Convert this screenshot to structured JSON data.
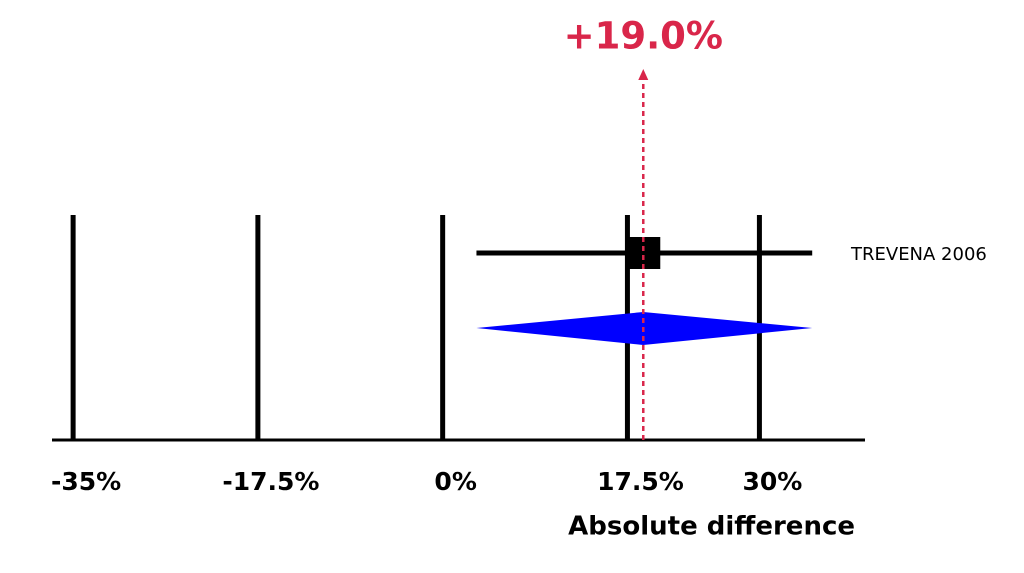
{
  "chart_data": {
    "type": "forest",
    "x_label": "Absolute difference",
    "xlim": [
      -37,
      40
    ],
    "xticks": [
      {
        "value": -35,
        "label": "-35%"
      },
      {
        "value": -17.5,
        "label": "-17.5%"
      },
      {
        "value": 0,
        "label": "0%"
      },
      {
        "value": 17.5,
        "label": "17.5%"
      },
      {
        "value": 30,
        "label": "30%"
      }
    ],
    "series": [
      {
        "name": "TREVENA 2006",
        "estimate": 19,
        "ci": [
          3.2,
          35
        ],
        "color": "#000000"
      }
    ],
    "pooled": {
      "estimate": 19,
      "ci": [
        3.2,
        35
      ],
      "color": "#0000ff"
    },
    "annotation": {
      "value": 19,
      "label": "+19.0%",
      "color": "#d9264a"
    }
  }
}
